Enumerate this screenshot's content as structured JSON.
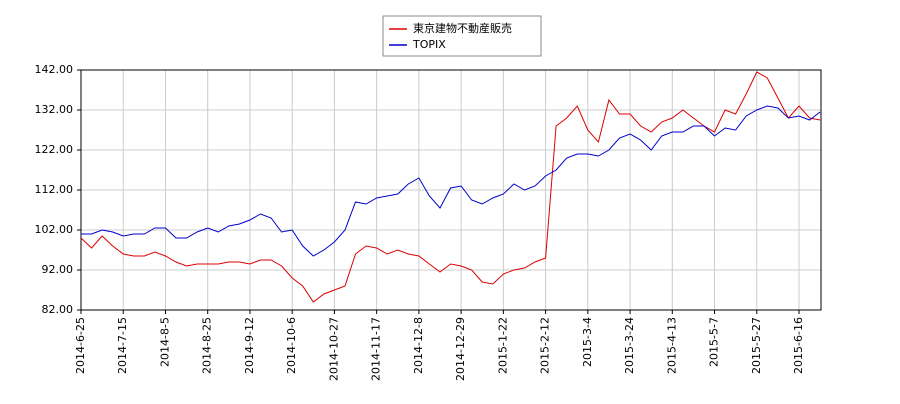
{
  "chart_data": {
    "type": "line",
    "categories": [
      "2014-6-25",
      null,
      null,
      null,
      "2014-7-15",
      null,
      null,
      null,
      "2014-8-5",
      null,
      null,
      null,
      "2014-8-25",
      null,
      null,
      null,
      "2014-9-12",
      null,
      null,
      null,
      "2014-10-6",
      null,
      null,
      null,
      "2014-10-27",
      null,
      null,
      null,
      "2014-11-17",
      null,
      null,
      null,
      "2014-12-8",
      null,
      null,
      null,
      "2014-12-29",
      null,
      null,
      null,
      "2015-1-22",
      null,
      null,
      null,
      "2015-2-12",
      null,
      null,
      null,
      "2015-3-4",
      null,
      null,
      null,
      "2015-3-24",
      null,
      null,
      null,
      "2015-4-13",
      null,
      null,
      null,
      "2015-5-7",
      null,
      null,
      null,
      "2015-5-27",
      null,
      null,
      null,
      "2015-6-16",
      null,
      null
    ],
    "series": [
      {
        "name": "東京建物不動産販売",
        "color": "#dd0000",
        "values": [
          100,
          97.5,
          100.5,
          98,
          96,
          95.5,
          95.5,
          96.5,
          95.5,
          94,
          93,
          93.5,
          93.5,
          93.5,
          94,
          94,
          93.5,
          94.5,
          94.5,
          93,
          90,
          88,
          84,
          86,
          87,
          88,
          96,
          98,
          97.5,
          96,
          97,
          96,
          95.5,
          93.5,
          91.5,
          93.5,
          93,
          92,
          89,
          88.5,
          91,
          92,
          92.5,
          94,
          95,
          128,
          130,
          133,
          127,
          124,
          134.5,
          131,
          131,
          128,
          126.5,
          129,
          130,
          132,
          130,
          128,
          126.5,
          132,
          131,
          136,
          141.5,
          140,
          135,
          130,
          133,
          130,
          129.5
        ]
      },
      {
        "name": "TOPIX",
        "color": "#0000cc",
        "values": [
          101,
          101,
          102,
          101.5,
          100.5,
          101,
          101,
          102.5,
          102.5,
          100,
          100,
          101.5,
          102.5,
          101.5,
          103,
          103.5,
          104.5,
          106,
          105,
          101.5,
          102,
          98,
          95.5,
          97,
          99,
          102,
          109,
          108.5,
          110,
          110.5,
          111,
          113.5,
          115,
          110.5,
          107.5,
          112.5,
          113,
          109.5,
          108.5,
          110,
          111,
          113.5,
          112,
          113,
          115.5,
          117,
          120,
          121,
          121,
          120.5,
          122,
          125,
          126,
          124.5,
          122,
          125.5,
          126.5,
          126.5,
          128,
          128,
          125.5,
          127.5,
          127,
          130.5,
          132,
          133,
          132.5,
          130,
          130.5,
          129.5,
          131.5
        ]
      }
    ],
    "ylim": [
      82,
      142
    ],
    "yticks": [
      {
        "value": 82,
        "label": "82.00"
      },
      {
        "value": 92,
        "label": "92.00"
      },
      {
        "value": 102,
        "label": "102.00"
      },
      {
        "value": 112,
        "label": "112.00"
      },
      {
        "value": 122,
        "label": "122.00"
      },
      {
        "value": 132,
        "label": "132.00"
      },
      {
        "value": 142,
        "label": "142.00"
      }
    ],
    "grid": true
  }
}
